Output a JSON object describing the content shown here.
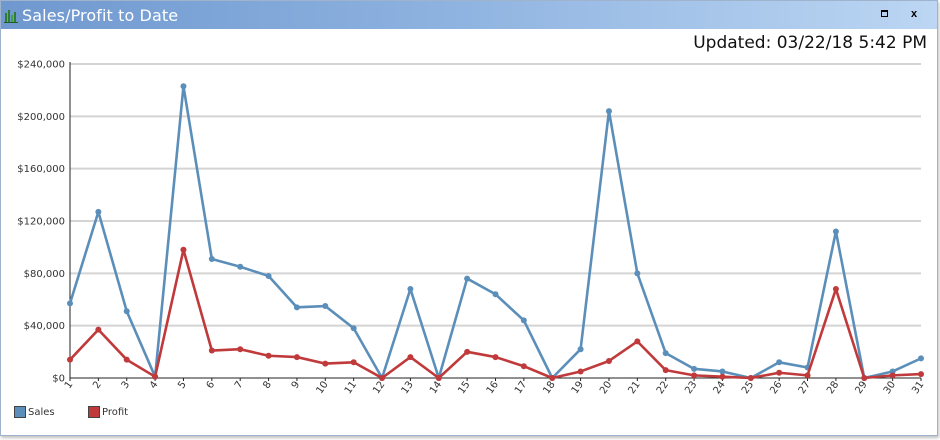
{
  "window": {
    "title": "Sales/Profit to Date",
    "icon": "bar-chart-icon",
    "maximize_icon": "maximize-icon",
    "close_label": "x"
  },
  "updated": {
    "label": "Updated:",
    "date": "03/22/18",
    "time": "5:42 PM"
  },
  "colors": {
    "sales": "#5b8fba",
    "profit": "#c0393b",
    "grid": "#d4d4d4"
  },
  "chart_data": {
    "type": "line",
    "x": [
      1,
      2,
      3,
      4,
      5,
      6,
      7,
      8,
      9,
      10,
      11,
      12,
      13,
      14,
      15,
      16,
      17,
      18,
      19,
      20,
      21,
      22,
      23,
      24,
      25,
      26,
      27,
      28,
      29,
      30,
      31
    ],
    "x_tick_labels": [
      "1",
      "2",
      "3",
      "4",
      "5",
      "6",
      "7",
      "8",
      "9",
      "10",
      "11",
      "12",
      "13",
      "14",
      "15",
      "16",
      "17",
      "18",
      "19",
      "20",
      "21",
      "22",
      "23",
      "24",
      "25",
      "26",
      "27",
      "28",
      "29",
      "30",
      "31"
    ],
    "ylim": [
      0,
      240000
    ],
    "y_ticks": [
      0,
      40000,
      80000,
      120000,
      160000,
      200000,
      240000
    ],
    "y_tick_labels": [
      "$0",
      "$40,000",
      "$80,000",
      "$120,000",
      "$160,000",
      "$200,000",
      "$240,000"
    ],
    "grid": true,
    "legend_position": "bottom-left",
    "series": [
      {
        "name": "Sales",
        "values": [
          57000,
          127000,
          51000,
          1000,
          223000,
          91000,
          85000,
          78000,
          54000,
          55000,
          38000,
          0,
          68000,
          0,
          76000,
          64000,
          44000,
          0,
          22000,
          204000,
          80000,
          19000,
          7000,
          5000,
          0,
          12000,
          8000,
          112000,
          0,
          5000,
          15000
        ]
      },
      {
        "name": "Profit",
        "values": [
          14000,
          37000,
          14000,
          1000,
          98000,
          21000,
          22000,
          17000,
          16000,
          11000,
          12000,
          0,
          16000,
          0,
          20000,
          16000,
          9000,
          0,
          5000,
          13000,
          28000,
          6000,
          2000,
          1000,
          0,
          4000,
          2000,
          68000,
          0,
          2000,
          3000
        ]
      }
    ]
  }
}
